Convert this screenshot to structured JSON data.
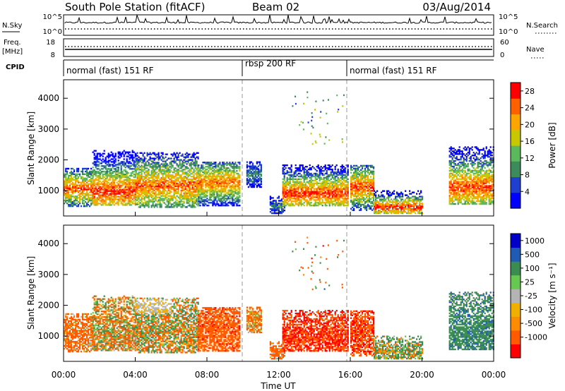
{
  "header": {
    "station": "South Pole Station (fitACF)",
    "beam": "Beam 02",
    "date": "03/Aug/2014"
  },
  "summary_panels": {
    "nsky_label": "N.Sky",
    "nsearch_label": "N.Search",
    "freq_label": "Freq.",
    "freq_unit": "[MHz]",
    "nave_label": "Nave",
    "cpid_label": "CPID",
    "noise_ticks": [
      "10^5",
      "10^0"
    ],
    "freq_ticks": [
      "18",
      "8"
    ],
    "nave_ticks": [
      "60",
      "0"
    ]
  },
  "cpid_segments": [
    {
      "label": "normal (fast) 151 RF",
      "start_hour": 0,
      "end_hour": 10
    },
    {
      "label": "rbsp 200 RF",
      "start_hour": 10,
      "end_hour": 16
    },
    {
      "label": "normal (fast) 151 RF",
      "start_hour": 16,
      "end_hour": 24
    }
  ],
  "axes": {
    "xlabel": "Time UT",
    "ylabel": "Slant Range [km]",
    "x_ticks": [
      "00:00",
      "04:00",
      "08:00",
      "12:00",
      "16:00",
      "20:00",
      "00:00"
    ],
    "y_ticks": [
      "1000",
      "2000",
      "3000",
      "4000"
    ]
  },
  "power_colorbar": {
    "label": "Power [dB]",
    "ticks": [
      "28",
      "24",
      "20",
      "16",
      "12",
      "8",
      "4"
    ]
  },
  "velocity_colorbar": {
    "label": "Velocity [m s⁻¹]",
    "ticks": [
      "1000",
      "500",
      "100",
      "25",
      "-25",
      "-100",
      "-500",
      "-1000"
    ]
  },
  "chart_data": [
    {
      "type": "heatmap",
      "name": "power",
      "title": "South Pole Station (fitACF) Beam 02 03/Aug/2014",
      "xlabel": "Time UT",
      "ylabel": "Slant Range [km]",
      "x_unit": "hour UT",
      "xlim": [
        0,
        24
      ],
      "ylim": [
        180,
        4600
      ],
      "colorbar": {
        "label": "Power [dB]",
        "range": [
          0,
          30
        ],
        "ticks": [
          4,
          8,
          12,
          16,
          20,
          24,
          28
        ]
      },
      "dashed_time_markers": [
        10,
        16
      ],
      "scatter_regions": [
        {
          "t0": 0.0,
          "t1": 1.6,
          "r0": 480,
          "r1": 1700,
          "peak_db": 26,
          "center_r": 1050
        },
        {
          "t0": 1.6,
          "t1": 4.0,
          "r0": 520,
          "r1": 2300,
          "peak_db": 27,
          "center_r": 950
        },
        {
          "t0": 4.0,
          "t1": 7.5,
          "r0": 450,
          "r1": 2250,
          "peak_db": 25,
          "center_r": 1150
        },
        {
          "t0": 7.5,
          "t1": 9.8,
          "r0": 500,
          "r1": 1900,
          "peak_db": 24,
          "center_r": 1250
        },
        {
          "t0": 10.2,
          "t1": 11.0,
          "r0": 1100,
          "r1": 1950,
          "peak_db": 10,
          "center_r": 1500
        },
        {
          "t0": 11.5,
          "t1": 12.3,
          "r0": 250,
          "r1": 800,
          "peak_db": 9,
          "center_r": 450
        },
        {
          "t0": 12.2,
          "t1": 15.9,
          "r0": 500,
          "r1": 1850,
          "peak_db": 27,
          "center_r": 900
        },
        {
          "t0": 16.0,
          "t1": 17.3,
          "r0": 350,
          "r1": 1800,
          "peak_db": 26,
          "center_r": 1100
        },
        {
          "t0": 17.3,
          "t1": 20.0,
          "r0": 250,
          "r1": 1000,
          "peak_db": 28,
          "center_r": 450
        },
        {
          "t0": 21.5,
          "t1": 24.0,
          "r0": 550,
          "r1": 2400,
          "peak_db": 26,
          "center_r": 1100
        }
      ]
    },
    {
      "type": "heatmap",
      "name": "velocity",
      "xlabel": "Time UT",
      "ylabel": "Slant Range [km]",
      "x_unit": "hour UT",
      "xlim": [
        0,
        24
      ],
      "ylim": [
        180,
        4600
      ],
      "colorbar": {
        "label": "Velocity [m s⁻¹]",
        "range": [
          -1000,
          1000
        ],
        "ticks": [
          1000,
          500,
          100,
          25,
          -25,
          -100,
          -500,
          -1000
        ]
      },
      "dashed_time_markers": [
        10,
        16
      ],
      "scatter_regions": [
        {
          "t0": 0.0,
          "t1": 1.6,
          "r0": 480,
          "r1": 1700,
          "mean_v": -200
        },
        {
          "t0": 1.6,
          "t1": 4.0,
          "r0": 520,
          "r1": 2300,
          "mean_v": -50
        },
        {
          "t0": 4.0,
          "t1": 7.5,
          "r0": 450,
          "r1": 2250,
          "mean_v": 0
        },
        {
          "t0": 7.5,
          "t1": 9.8,
          "r0": 500,
          "r1": 1900,
          "mean_v": -300
        },
        {
          "t0": 10.2,
          "t1": 11.0,
          "r0": 1100,
          "r1": 1950,
          "mean_v": -150
        },
        {
          "t0": 11.5,
          "t1": 12.3,
          "r0": 250,
          "r1": 800,
          "mean_v": -200
        },
        {
          "t0": 12.2,
          "t1": 15.9,
          "r0": 500,
          "r1": 1850,
          "mean_v": -500
        },
        {
          "t0": 16.0,
          "t1": 17.3,
          "r0": 350,
          "r1": 1800,
          "mean_v": -400
        },
        {
          "t0": 17.3,
          "t1": 20.0,
          "r0": 250,
          "r1": 1000,
          "mean_v": 80
        },
        {
          "t0": 21.5,
          "t1": 24.0,
          "r0": 550,
          "r1": 2400,
          "mean_v": 350
        }
      ],
      "notes": [
        "ground scatter (|v| < 25) drawn in grey between 04:00 and 06:00 near 2000 km"
      ]
    }
  ],
  "colors": {
    "power_scale": [
      "#0000ff",
      "#1f3fd0",
      "#3d8a5a",
      "#5cb85c",
      "#c8c800",
      "#ffa500",
      "#ff6000",
      "#ff0000"
    ],
    "velocity_scale": [
      "#ff0000",
      "#ff5a00",
      "#ff8c00",
      "#f0b000",
      "#b4b4b4",
      "#66c850",
      "#3a8c50",
      "#1f5ab4",
      "#0000c8"
    ]
  }
}
